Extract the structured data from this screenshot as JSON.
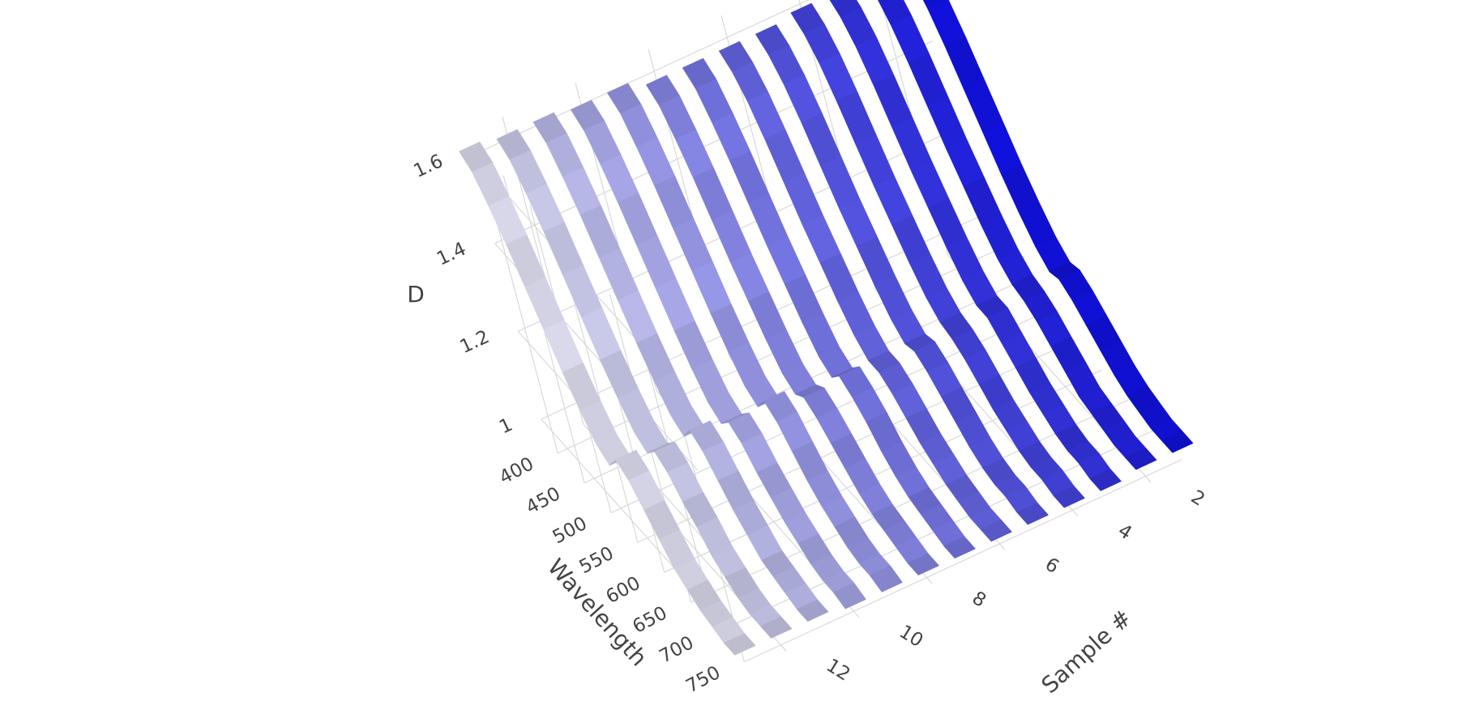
{
  "chart_data": {
    "type": "ribbon-3d",
    "title": "",
    "axes": {
      "x": {
        "label": "Wavelength",
        "range": [
          380,
          760
        ],
        "ticks": [
          "400",
          "450",
          "500",
          "550",
          "600",
          "650",
          "700",
          "750"
        ]
      },
      "y": {
        "label": "Sample #",
        "range": [
          1,
          13
        ],
        "ticks": [
          "2",
          "4",
          "6",
          "8",
          "10",
          "12"
        ]
      },
      "z": {
        "label": "D",
        "range": [
          0.95,
          1.65
        ],
        "ticks": [
          "1",
          "1.2",
          "1.4",
          "1.6"
        ]
      }
    },
    "grid": true,
    "legend": "none",
    "color_scale": {
      "low": "#e4e4f7",
      "high": "#1212e8"
    },
    "wavelength": [
      380,
      400,
      420,
      440,
      460,
      480,
      500,
      520,
      540,
      560,
      580,
      600,
      620,
      640,
      660,
      680,
      700,
      720,
      740,
      760
    ],
    "series": [
      {
        "sample": 1,
        "values": [
          1.6,
          1.58,
          1.54,
          1.48,
          1.41,
          1.34,
          1.27,
          1.21,
          1.16,
          1.13,
          1.14,
          1.12,
          1.09,
          1.06,
          1.03,
          1.01,
          1.0,
          0.99,
          0.99,
          0.99
        ]
      },
      {
        "sample": 2,
        "values": [
          1.6,
          1.58,
          1.54,
          1.48,
          1.41,
          1.34,
          1.28,
          1.22,
          1.17,
          1.14,
          1.13,
          1.11,
          1.08,
          1.05,
          1.02,
          1.01,
          1.0,
          0.99,
          0.99,
          0.99
        ]
      },
      {
        "sample": 3,
        "values": [
          1.59,
          1.57,
          1.53,
          1.47,
          1.4,
          1.33,
          1.27,
          1.21,
          1.16,
          1.13,
          1.13,
          1.1,
          1.07,
          1.04,
          1.02,
          1.0,
          0.99,
          0.99,
          0.98,
          0.98
        ]
      },
      {
        "sample": 4,
        "values": [
          1.59,
          1.57,
          1.53,
          1.47,
          1.4,
          1.33,
          1.27,
          1.21,
          1.16,
          1.13,
          1.12,
          1.1,
          1.07,
          1.04,
          1.02,
          1.0,
          0.99,
          0.99,
          0.98,
          0.98
        ]
      },
      {
        "sample": 5,
        "values": [
          1.58,
          1.56,
          1.52,
          1.46,
          1.39,
          1.32,
          1.26,
          1.2,
          1.15,
          1.12,
          1.13,
          1.11,
          1.08,
          1.05,
          1.02,
          1.0,
          0.99,
          0.99,
          0.98,
          0.98
        ]
      },
      {
        "sample": 6,
        "values": [
          1.58,
          1.56,
          1.52,
          1.46,
          1.39,
          1.32,
          1.26,
          1.2,
          1.15,
          1.12,
          1.12,
          1.1,
          1.07,
          1.04,
          1.02,
          1.0,
          0.99,
          0.98,
          0.98,
          0.98
        ]
      },
      {
        "sample": 7,
        "values": [
          1.58,
          1.56,
          1.51,
          1.45,
          1.38,
          1.31,
          1.25,
          1.19,
          1.14,
          1.12,
          1.15,
          1.13,
          1.1,
          1.06,
          1.03,
          1.01,
          1.0,
          0.99,
          0.98,
          0.98
        ]
      },
      {
        "sample": 8,
        "values": [
          1.58,
          1.56,
          1.51,
          1.45,
          1.38,
          1.31,
          1.25,
          1.19,
          1.14,
          1.12,
          1.14,
          1.12,
          1.09,
          1.06,
          1.03,
          1.01,
          1.0,
          0.99,
          0.98,
          0.98
        ]
      },
      {
        "sample": 9,
        "values": [
          1.6,
          1.58,
          1.53,
          1.47,
          1.4,
          1.33,
          1.26,
          1.2,
          1.15,
          1.13,
          1.17,
          1.15,
          1.11,
          1.07,
          1.04,
          1.02,
          1.0,
          0.99,
          0.99,
          0.98
        ]
      },
      {
        "sample": 10,
        "values": [
          1.6,
          1.58,
          1.53,
          1.47,
          1.4,
          1.33,
          1.26,
          1.2,
          1.15,
          1.13,
          1.16,
          1.14,
          1.1,
          1.07,
          1.04,
          1.02,
          1.0,
          0.99,
          0.99,
          0.98
        ]
      },
      {
        "sample": 11,
        "values": [
          1.61,
          1.59,
          1.54,
          1.48,
          1.41,
          1.34,
          1.27,
          1.21,
          1.16,
          1.14,
          1.18,
          1.16,
          1.12,
          1.08,
          1.05,
          1.02,
          1.01,
          1.0,
          0.99,
          0.99
        ]
      },
      {
        "sample": 12,
        "values": [
          1.61,
          1.59,
          1.54,
          1.48,
          1.41,
          1.34,
          1.27,
          1.21,
          1.16,
          1.14,
          1.17,
          1.15,
          1.11,
          1.08,
          1.04,
          1.02,
          1.0,
          0.99,
          0.99,
          0.99
        ]
      },
      {
        "sample": 13,
        "values": [
          1.62,
          1.6,
          1.55,
          1.49,
          1.42,
          1.35,
          1.28,
          1.22,
          1.17,
          1.15,
          1.19,
          1.17,
          1.13,
          1.09,
          1.05,
          1.03,
          1.01,
          1.0,
          0.99,
          0.99
        ]
      }
    ]
  }
}
